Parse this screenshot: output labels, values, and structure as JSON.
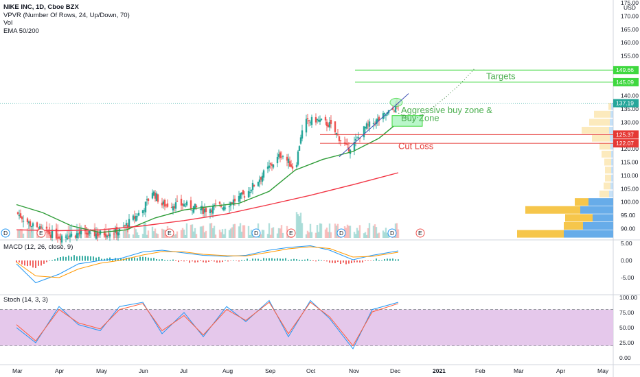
{
  "header": {
    "symbol_line": "NIKE INC, 1D, Cboe BZX",
    "vpvr_line": "VPVR (Number Of Rows, 24, Up/Down, 70)",
    "vol_line": "Vol",
    "ema_line": "EMA 50/200",
    "macd_line": "MACD (12, 26, close, 9)",
    "stoch_line": "Stoch (14, 3, 3)"
  },
  "colors": {
    "up": "#26a69a",
    "down": "#ef5350",
    "ema50": "#2e9c37",
    "ema200": "#f23645",
    "macd": "#2196f3",
    "signal": "#ff9800",
    "stoch_k": "#2196f3",
    "stoch_d": "#ff5d3b",
    "stoch_band": "#e1bee7",
    "target": "#3fd83f",
    "cutloss": "#e53935",
    "vp_up": "#5fa8e8",
    "vp_down": "#f5c341"
  },
  "chart_data": [
    {
      "type": "candlestick",
      "title": "NIKE INC, 1D, Cboe BZX",
      "currency": "USD",
      "x_ticks": [
        "Mar",
        "Apr",
        "May",
        "Jun",
        "Jul",
        "Aug",
        "Sep",
        "Oct",
        "Nov",
        "Dec",
        "2021",
        "Feb",
        "Mar",
        "Apr",
        "May"
      ],
      "y_ticks": [
        "175.00",
        "170.00",
        "165.00",
        "160.00",
        "155.00",
        "150.00",
        "145.00",
        "140.00",
        "135.00",
        "130.00",
        "125.00",
        "120.00",
        "115.00",
        "110.00",
        "105.00",
        "100.00",
        "95.00",
        "90.00"
      ],
      "ylim": [
        87,
        175
      ],
      "last_price": "137.19",
      "price_levels": [
        {
          "label": "149.66",
          "value": 149.66,
          "kind": "target"
        },
        {
          "label": "145.09",
          "value": 145.09,
          "kind": "target"
        },
        {
          "label": "125.37",
          "value": 125.37,
          "kind": "cutloss"
        },
        {
          "label": "122.07",
          "value": 122.07,
          "kind": "cutloss"
        }
      ],
      "annotations": {
        "targets": "Targets",
        "aggressive": "Aggressive buy zone &",
        "buy_zone": "Buy Zone",
        "cut_loss": "Cut Loss"
      },
      "series": [
        {
          "name": "Close",
          "x": [
            "2020-03-01",
            "2020-03-15",
            "2020-04-01",
            "2020-04-15",
            "2020-05-01",
            "2020-05-15",
            "2020-06-01",
            "2020-06-08",
            "2020-06-15",
            "2020-07-01",
            "2020-07-15",
            "2020-08-01",
            "2020-08-15",
            "2020-09-01",
            "2020-09-10",
            "2020-09-20",
            "2020-09-24",
            "2020-09-28",
            "2020-10-05",
            "2020-10-15",
            "2020-10-28",
            "2020-11-02",
            "2020-11-10",
            "2020-11-20",
            "2020-12-01",
            "2020-12-04"
          ],
          "y": [
            96,
            90,
            87,
            88,
            88,
            89,
            97,
            104,
            99,
            99,
            97,
            99,
            103,
            113,
            118,
            112,
            125,
            130,
            131,
            129,
            120,
            122,
            128,
            131,
            135,
            137.2
          ]
        },
        {
          "name": "EMA 50",
          "x": [
            "2020-03-01",
            "2020-03-20",
            "2020-04-10",
            "2020-05-01",
            "2020-05-20",
            "2020-06-10",
            "2020-07-01",
            "2020-07-20",
            "2020-08-10",
            "2020-09-01",
            "2020-09-20",
            "2020-10-10",
            "2020-11-01",
            "2020-11-20",
            "2020-12-04"
          ],
          "y": [
            99,
            96,
            91,
            88.5,
            89.5,
            94,
            97,
            98.3,
            99.5,
            104,
            112,
            116,
            119,
            124,
            130
          ]
        },
        {
          "name": "EMA 200",
          "x": [
            "2020-03-01",
            "2020-04-01",
            "2020-05-01",
            "2020-06-01",
            "2020-07-01",
            "2020-08-01",
            "2020-09-01",
            "2020-10-01",
            "2020-11-01",
            "2020-12-04"
          ],
          "y": [
            89.5,
            89.2,
            89.5,
            91,
            93,
            95.5,
            99,
            102.5,
            106.5,
            111
          ]
        }
      ],
      "volume_profile": [
        {
          "price": 88,
          "up": 72,
          "down": 68
        },
        {
          "price": 91,
          "up": 44,
          "down": 28
        },
        {
          "price": 94,
          "up": 30,
          "down": 40
        },
        {
          "price": 97,
          "up": 48,
          "down": 80
        },
        {
          "price": 100,
          "up": 36,
          "down": 20
        },
        {
          "price": 103,
          "up": 6,
          "down": 14
        },
        {
          "price": 106,
          "up": 4,
          "down": 10
        },
        {
          "price": 109,
          "up": 3,
          "down": 9
        },
        {
          "price": 112,
          "up": 3,
          "down": 9
        },
        {
          "price": 115,
          "up": 3,
          "down": 10
        },
        {
          "price": 118,
          "up": 3,
          "down": 14
        },
        {
          "price": 121,
          "up": 4,
          "down": 16
        },
        {
          "price": 124,
          "up": 5,
          "down": 26
        },
        {
          "price": 127,
          "up": 6,
          "down": 40
        },
        {
          "price": 130,
          "up": 5,
          "down": 30
        },
        {
          "price": 133,
          "up": 4,
          "down": 24
        },
        {
          "price": 136,
          "up": 3,
          "down": 4
        }
      ]
    },
    {
      "type": "line",
      "title": "MACD (12, 26, close, 9)",
      "y_ticks": [
        "5.00",
        "0.00",
        "-5.00"
      ],
      "ylim": [
        -8,
        6
      ],
      "series": [
        {
          "name": "MACD",
          "x": [
            "2020-03-01",
            "2020-03-15",
            "2020-04-01",
            "2020-04-15",
            "2020-05-01",
            "2020-05-15",
            "2020-06-01",
            "2020-06-15",
            "2020-07-01",
            "2020-07-15",
            "2020-08-01",
            "2020-08-15",
            "2020-09-01",
            "2020-09-15",
            "2020-10-01",
            "2020-10-15",
            "2020-11-01",
            "2020-11-15",
            "2020-12-04"
          ],
          "y": [
            -1,
            -6.5,
            -4,
            -1,
            0,
            0.5,
            2.5,
            3,
            2.2,
            1.5,
            1.2,
            1.5,
            3,
            3.8,
            4.3,
            3,
            0.2,
            1.5,
            2.8
          ]
        },
        {
          "name": "Signal",
          "x": [
            "2020-03-01",
            "2020-03-15",
            "2020-04-01",
            "2020-04-15",
            "2020-05-01",
            "2020-05-15",
            "2020-06-01",
            "2020-06-15",
            "2020-07-01",
            "2020-07-15",
            "2020-08-01",
            "2020-08-15",
            "2020-09-01",
            "2020-09-15",
            "2020-10-01",
            "2020-10-15",
            "2020-11-01",
            "2020-11-15",
            "2020-12-04"
          ],
          "y": [
            -0.5,
            -4.5,
            -5,
            -2.5,
            -0.8,
            0,
            1.6,
            2.6,
            2.5,
            1.8,
            1.4,
            1.3,
            2.4,
            3.4,
            4,
            3.5,
            1,
            1.2,
            2.4
          ]
        }
      ]
    },
    {
      "type": "line",
      "title": "Stoch (14, 3, 3)",
      "y_ticks": [
        "100.00",
        "75.00",
        "50.00",
        "25.00",
        "0.00"
      ],
      "ylim": [
        0,
        100
      ],
      "bands": [
        20,
        80
      ],
      "series": [
        {
          "name": "%K",
          "x": [
            "2020-03-01",
            "2020-03-15",
            "2020-04-01",
            "2020-04-15",
            "2020-05-01",
            "2020-05-15",
            "2020-06-01",
            "2020-06-15",
            "2020-07-01",
            "2020-07-15",
            "2020-08-01",
            "2020-08-15",
            "2020-09-01",
            "2020-09-15",
            "2020-10-01",
            "2020-10-15",
            "2020-11-01",
            "2020-11-15",
            "2020-12-04"
          ],
          "y": [
            50,
            25,
            85,
            55,
            45,
            85,
            92,
            40,
            75,
            35,
            85,
            60,
            95,
            35,
            95,
            65,
            15,
            80,
            92
          ]
        },
        {
          "name": "%D",
          "x": [
            "2020-03-01",
            "2020-03-15",
            "2020-04-01",
            "2020-04-15",
            "2020-05-01",
            "2020-05-15",
            "2020-06-01",
            "2020-06-15",
            "2020-07-01",
            "2020-07-15",
            "2020-08-01",
            "2020-08-15",
            "2020-09-01",
            "2020-09-15",
            "2020-10-01",
            "2020-10-15",
            "2020-11-01",
            "2020-11-15",
            "2020-12-04"
          ],
          "y": [
            55,
            28,
            80,
            58,
            48,
            80,
            90,
            45,
            70,
            38,
            80,
            62,
            92,
            40,
            92,
            68,
            20,
            76,
            90
          ]
        }
      ]
    }
  ]
}
